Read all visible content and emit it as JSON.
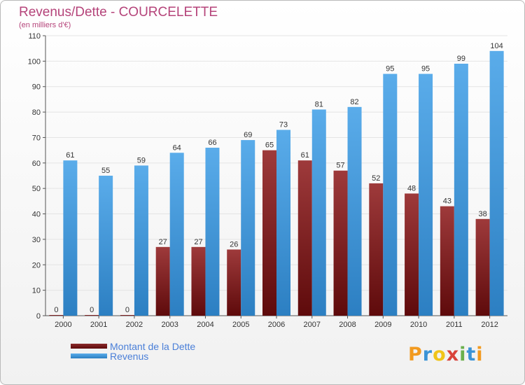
{
  "title": "Revenus/Dette - COURCELETTE",
  "subtitle": "(en milliers d'€)",
  "logo_text": "Proxiti",
  "colors": {
    "debt": "#6b0f10",
    "debt_light": "#9e3a3b",
    "revenue": "#2f86cc",
    "revenue_light": "#5aacea",
    "title": "#b5447a",
    "legend_text": "#4a7fd8"
  },
  "legend": [
    {
      "label": "Montant de la Dette",
      "color": "#6b0f10"
    },
    {
      "label": "Revenus",
      "color": "#4aa3e6"
    }
  ],
  "chart_data": {
    "type": "bar",
    "title": "Revenus/Dette - COURCELETTE",
    "subtitle": "(en milliers d'€)",
    "categories": [
      "2000",
      "2001",
      "2002",
      "2003",
      "2004",
      "2005",
      "2006",
      "2007",
      "2008",
      "2009",
      "2010",
      "2011",
      "2012"
    ],
    "series": [
      {
        "name": "Montant de la Dette",
        "values": [
          0,
          0,
          0,
          27,
          27,
          26,
          65,
          61,
          57,
          52,
          48,
          43,
          38
        ]
      },
      {
        "name": "Revenus",
        "values": [
          61,
          55,
          59,
          64,
          66,
          69,
          73,
          81,
          82,
          95,
          95,
          99,
          104
        ]
      }
    ],
    "yticks": [
      0,
      10,
      20,
      30,
      40,
      50,
      60,
      70,
      80,
      90,
      100,
      110
    ],
    "ylim": [
      0,
      110
    ],
    "grid": true,
    "legend_position": "bottom-left"
  }
}
